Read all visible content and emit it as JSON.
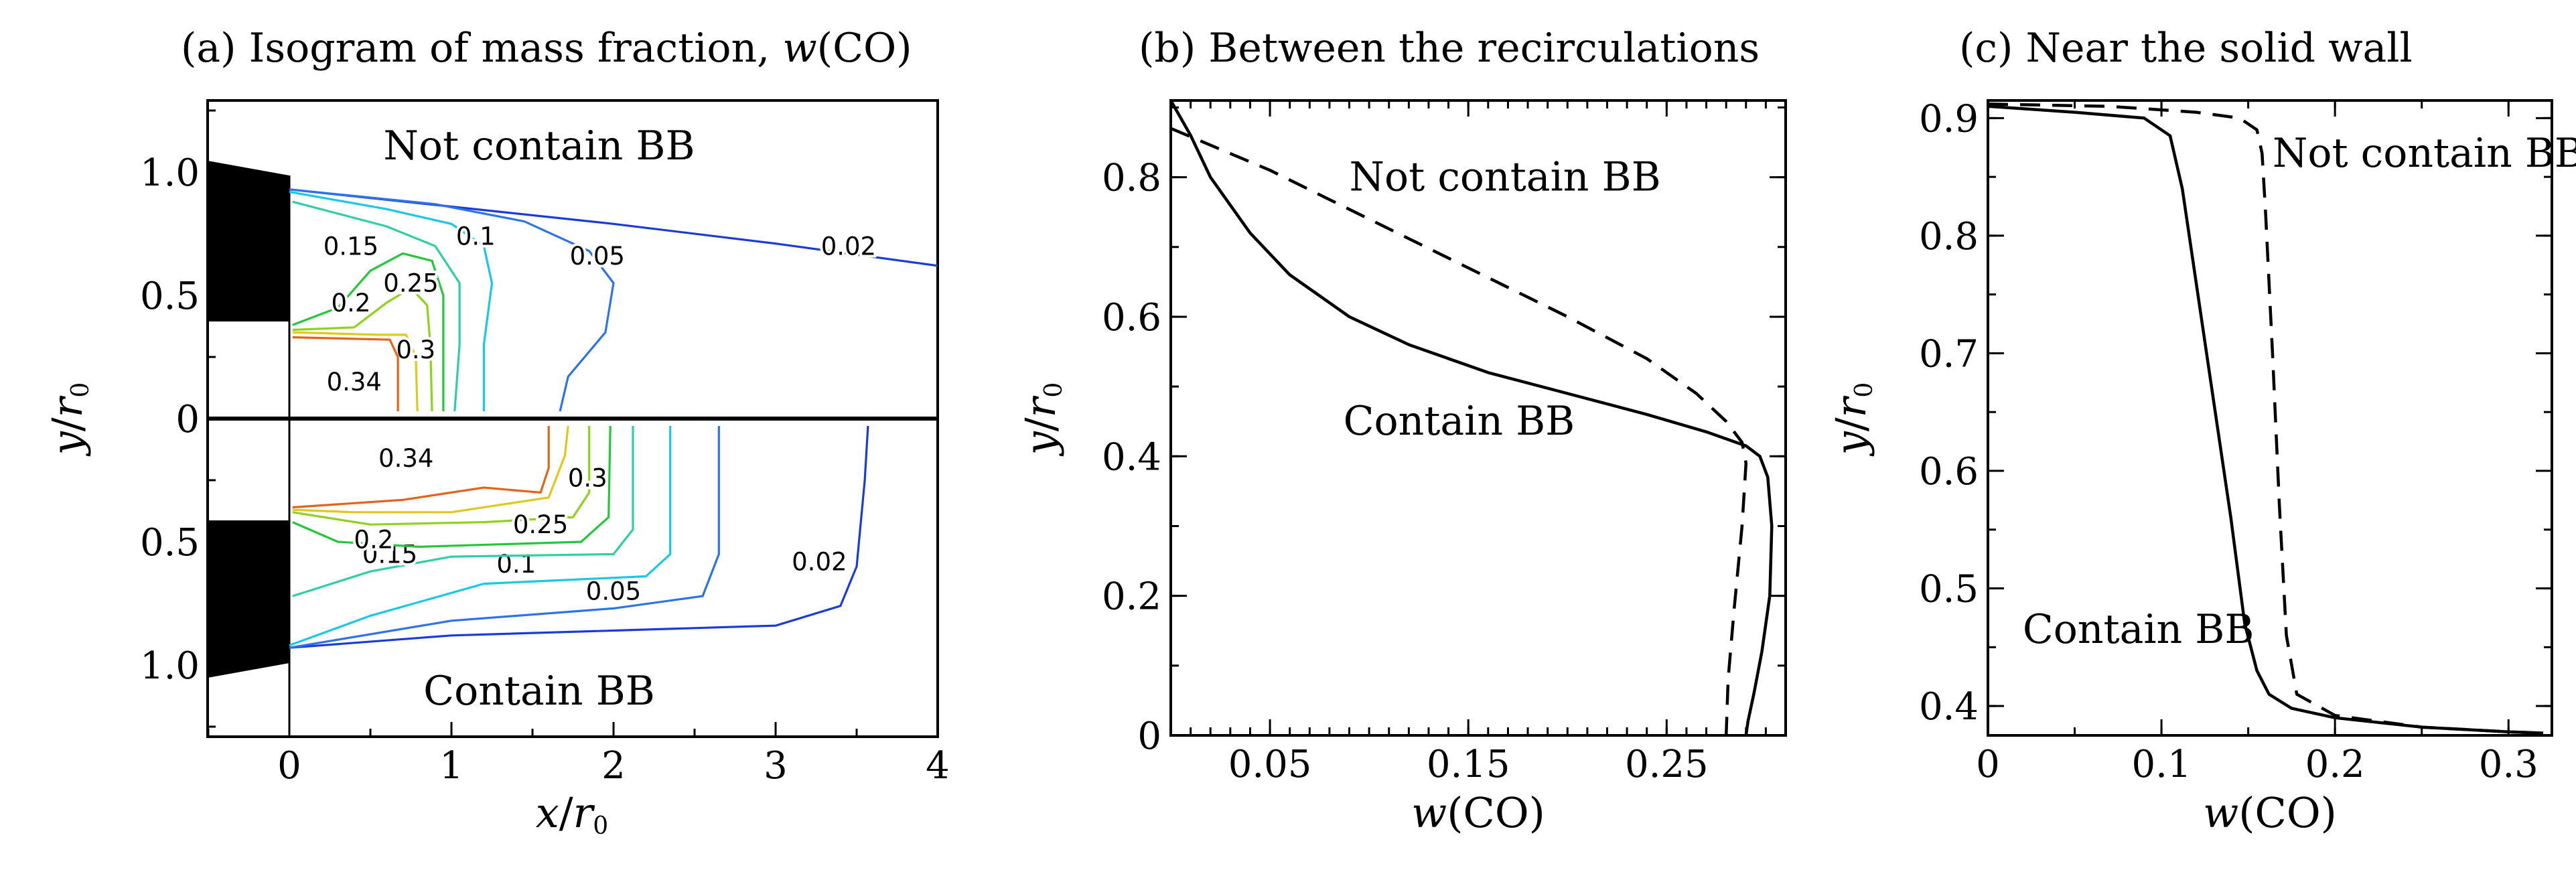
{
  "chart_data": [
    {
      "panel": "a",
      "type": "contour",
      "title": "(a) Isogram of mass fraction, w(CO)",
      "title_parts": {
        "prefix": "(a) Isogram of mass fraction, ",
        "var": "w",
        "suffix": "(CO)"
      },
      "xlabel": "x/r0",
      "xlabel_parts": {
        "num": "x",
        "den": "r",
        "sub": "0"
      },
      "ylabel": "y/r0",
      "ylabel_parts": {
        "num": "y",
        "den": "r",
        "sub": "0"
      },
      "xlim": [
        -0.5,
        4
      ],
      "x_ticks": [
        "0",
        "1",
        "2",
        "3",
        "4"
      ],
      "top_y_ticks": [
        "1.0",
        "0.5",
        "0"
      ],
      "bottom_y_ticks": [
        "0.5",
        "1.0"
      ],
      "top_label": "Not contain BB",
      "bottom_label": "Contain BB",
      "top_levels": [
        {
          "value": "0.02",
          "color": "#1a3cd6",
          "points": [
            [
              0,
              0.93
            ],
            [
              1,
              0.86
            ],
            [
              2,
              0.79
            ],
            [
              3,
              0.71
            ],
            [
              4,
              0.62
            ]
          ],
          "label": {
            "x": 3.45,
            "y": 0.7
          }
        },
        {
          "value": "0.05",
          "color": "#2c72e8",
          "points": [
            [
              0,
              0.93
            ],
            [
              0.9,
              0.87
            ],
            [
              1.45,
              0.8
            ],
            [
              1.85,
              0.68
            ],
            [
              2.0,
              0.55
            ],
            [
              1.95,
              0.35
            ],
            [
              1.72,
              0.17
            ],
            [
              1.67,
              0.03
            ]
          ],
          "label": {
            "x": 1.9,
            "y": 0.66
          }
        },
        {
          "value": "0.1",
          "color": "#19c8e6",
          "points": [
            [
              0,
              0.92
            ],
            [
              0.6,
              0.85
            ],
            [
              1.0,
              0.79
            ],
            [
              1.2,
              0.7
            ],
            [
              1.25,
              0.55
            ],
            [
              1.2,
              0.3
            ],
            [
              1.2,
              0.03
            ]
          ],
          "label": {
            "x": 1.15,
            "y": 0.74
          }
        },
        {
          "value": "0.15",
          "color": "#2ecfa0",
          "points": [
            [
              0.02,
              0.88
            ],
            [
              0.6,
              0.78
            ],
            [
              0.9,
              0.7
            ],
            [
              1.05,
              0.55
            ],
            [
              1.05,
              0.3
            ],
            [
              1.02,
              0.03
            ]
          ],
          "label": {
            "x": 0.38,
            "y": 0.7
          }
        },
        {
          "value": "0.2",
          "color": "#22c83a",
          "points": [
            [
              0.02,
              0.38
            ],
            [
              0.3,
              0.45
            ],
            [
              0.5,
              0.6
            ],
            [
              0.7,
              0.67
            ],
            [
              0.88,
              0.64
            ],
            [
              0.95,
              0.5
            ],
            [
              0.95,
              0.03
            ]
          ],
          "label": {
            "x": 0.38,
            "y": 0.47
          }
        },
        {
          "value": "0.25",
          "color": "#8fd21e",
          "points": [
            [
              0.02,
              0.36
            ],
            [
              0.4,
              0.37
            ],
            [
              0.6,
              0.47
            ],
            [
              0.75,
              0.53
            ],
            [
              0.85,
              0.46
            ],
            [
              0.87,
              0.3
            ],
            [
              0.88,
              0.03
            ]
          ],
          "label": {
            "x": 0.75,
            "y": 0.55
          }
        },
        {
          "value": "0.3",
          "color": "#e0c81a",
          "points": [
            [
              0.02,
              0.35
            ],
            [
              0.55,
              0.34
            ],
            [
              0.72,
              0.34
            ],
            [
              0.78,
              0.25
            ],
            [
              0.79,
              0.03
            ]
          ],
          "label": {
            "x": 0.78,
            "y": 0.28
          }
        },
        {
          "value": "0.34",
          "color": "#e0641a",
          "points": [
            [
              0.02,
              0.33
            ],
            [
              0.62,
              0.32
            ],
            [
              0.67,
              0.25
            ],
            [
              0.67,
              0.03
            ]
          ],
          "label": {
            "x": 0.4,
            "y": 0.15
          }
        }
      ],
      "bottom_levels": [
        {
          "value": "0.02",
          "color": "#1a3cd6",
          "points": [
            [
              0,
              0.93
            ],
            [
              1,
              0.88
            ],
            [
              2,
              0.86
            ],
            [
              3,
              0.84
            ],
            [
              3.4,
              0.76
            ],
            [
              3.5,
              0.6
            ],
            [
              3.55,
              0.25
            ],
            [
              3.57,
              0.03
            ]
          ],
          "label": {
            "x": 3.27,
            "y": 0.58
          }
        },
        {
          "value": "0.05",
          "color": "#2c72e8",
          "points": [
            [
              0,
              0.93
            ],
            [
              1,
              0.82
            ],
            [
              2,
              0.77
            ],
            [
              2.55,
              0.72
            ],
            [
              2.65,
              0.55
            ],
            [
              2.65,
              0.3
            ],
            [
              2.65,
              0.03
            ]
          ],
          "label": {
            "x": 2.0,
            "y": 0.7
          }
        },
        {
          "value": "0.1",
          "color": "#19c8e6",
          "points": [
            [
              0,
              0.92
            ],
            [
              0.5,
              0.8
            ],
            [
              1.2,
              0.67
            ],
            [
              2.2,
              0.64
            ],
            [
              2.35,
              0.55
            ],
            [
              2.35,
              0.03
            ]
          ],
          "label": {
            "x": 1.4,
            "y": 0.59
          }
        },
        {
          "value": "0.15",
          "color": "#2ecfa0",
          "points": [
            [
              0.02,
              0.72
            ],
            [
              0.5,
              0.62
            ],
            [
              1.0,
              0.56
            ],
            [
              2.0,
              0.55
            ],
            [
              2.12,
              0.45
            ],
            [
              2.12,
              0.03
            ]
          ],
          "label": {
            "x": 0.62,
            "y": 0.55
          }
        },
        {
          "value": "0.2",
          "color": "#22c83a",
          "points": [
            [
              0.02,
              0.42
            ],
            [
              0.3,
              0.5
            ],
            [
              0.8,
              0.52
            ],
            [
              1.8,
              0.5
            ],
            [
              1.97,
              0.4
            ],
            [
              1.98,
              0.03
            ]
          ],
          "label": {
            "x": 0.52,
            "y": 0.49
          }
        },
        {
          "value": "0.25",
          "color": "#8fd21e",
          "points": [
            [
              0.02,
              0.38
            ],
            [
              0.5,
              0.43
            ],
            [
              1.2,
              0.42
            ],
            [
              1.75,
              0.4
            ],
            [
              1.85,
              0.3
            ],
            [
              1.85,
              0.03
            ]
          ],
          "label": {
            "x": 1.55,
            "y": 0.43
          }
        },
        {
          "value": "0.3",
          "color": "#e0c81a",
          "points": [
            [
              0.02,
              0.37
            ],
            [
              0.4,
              0.38
            ],
            [
              1.0,
              0.38
            ],
            [
              1.6,
              0.32
            ],
            [
              1.7,
              0.15
            ],
            [
              1.72,
              0.03
            ]
          ],
          "label": {
            "x": 1.84,
            "y": 0.24
          }
        },
        {
          "value": "0.34",
          "color": "#e0641a",
          "points": [
            [
              0.02,
              0.36
            ],
            [
              0.7,
              0.33
            ],
            [
              1.2,
              0.28
            ],
            [
              1.55,
              0.3
            ],
            [
              1.6,
              0.2
            ],
            [
              1.6,
              0.03
            ]
          ],
          "label": {
            "x": 0.72,
            "y": 0.16
          }
        }
      ]
    },
    {
      "panel": "b",
      "type": "line",
      "title": "(b) Between the recirculations",
      "xlabel": "w(CO)",
      "xlabel_parts": {
        "var": "w",
        "suffix": "(CO)"
      },
      "ylabel": "y/r0",
      "ylabel_parts": {
        "num": "y",
        "den": "r",
        "sub": "0"
      },
      "xlim": [
        0,
        0.31
      ],
      "ylim": [
        0,
        0.91
      ],
      "x_ticks": [
        {
          "value": 0.05,
          "label": "0.05"
        },
        {
          "value": 0.15,
          "label": "0.15"
        },
        {
          "value": 0.25,
          "label": "0.25"
        }
      ],
      "y_ticks": [
        {
          "value": 0,
          "label": "0"
        },
        {
          "value": 0.2,
          "label": "0.2"
        },
        {
          "value": 0.4,
          "label": "0.4"
        },
        {
          "value": 0.6,
          "label": "0.6"
        },
        {
          "value": 0.8,
          "label": "0.8"
        }
      ],
      "annotations": [
        {
          "text": "Not contain BB",
          "x": 0.09,
          "y": 0.8
        },
        {
          "text": "Contain BB",
          "x": 0.087,
          "y": 0.45
        }
      ],
      "series": [
        {
          "name": "Contain BB",
          "style": "solid",
          "x": [
            0.0,
            0.01,
            0.02,
            0.04,
            0.06,
            0.09,
            0.12,
            0.16,
            0.2,
            0.24,
            0.27,
            0.29,
            0.297,
            0.301,
            0.303,
            0.302,
            0.298,
            0.294,
            0.291,
            0.29
          ],
          "y": [
            0.91,
            0.86,
            0.8,
            0.72,
            0.66,
            0.6,
            0.56,
            0.52,
            0.49,
            0.46,
            0.435,
            0.415,
            0.4,
            0.37,
            0.3,
            0.2,
            0.12,
            0.06,
            0.02,
            0.0
          ]
        },
        {
          "name": "Not contain BB",
          "style": "dashed",
          "x": [
            0.0,
            0.05,
            0.1,
            0.15,
            0.2,
            0.24,
            0.265,
            0.28,
            0.288,
            0.29,
            0.288,
            0.284,
            0.281,
            0.28
          ],
          "y": [
            0.87,
            0.81,
            0.74,
            0.67,
            0.6,
            0.54,
            0.49,
            0.45,
            0.42,
            0.39,
            0.3,
            0.18,
            0.08,
            0.0
          ]
        }
      ]
    },
    {
      "panel": "c",
      "type": "line",
      "title": "(c) Near the solid wall",
      "xlabel": "w(CO)",
      "xlabel_parts": {
        "var": "w",
        "suffix": "(CO)"
      },
      "ylabel": "y/r0",
      "ylabel_parts": {
        "num": "y",
        "den": "r",
        "sub": "0"
      },
      "xlim": [
        0,
        0.325
      ],
      "ylim": [
        0.375,
        0.915
      ],
      "x_ticks": [
        {
          "value": 0,
          "label": "0"
        },
        {
          "value": 0.1,
          "label": "0.1"
        },
        {
          "value": 0.2,
          "label": "0.2"
        },
        {
          "value": 0.3,
          "label": "0.3"
        }
      ],
      "y_ticks": [
        {
          "value": 0.4,
          "label": "0.4"
        },
        {
          "value": 0.5,
          "label": "0.5"
        },
        {
          "value": 0.6,
          "label": "0.6"
        },
        {
          "value": 0.7,
          "label": "0.7"
        },
        {
          "value": 0.8,
          "label": "0.8"
        },
        {
          "value": 0.9,
          "label": "0.9"
        }
      ],
      "annotations": [
        {
          "text": "Not contain BB",
          "x": 0.164,
          "y": 0.87
        },
        {
          "text": "Contain BB",
          "x": 0.02,
          "y": 0.465
        }
      ],
      "series": [
        {
          "name": "Contain BB",
          "style": "solid",
          "x": [
            0.0,
            0.05,
            0.09,
            0.105,
            0.112,
            0.12,
            0.13,
            0.14,
            0.148,
            0.155,
            0.162,
            0.175,
            0.2,
            0.25,
            0.3,
            0.32
          ],
          "y": [
            0.91,
            0.905,
            0.9,
            0.885,
            0.84,
            0.76,
            0.66,
            0.56,
            0.47,
            0.43,
            0.41,
            0.398,
            0.39,
            0.382,
            0.378,
            0.377
          ]
        },
        {
          "name": "Not contain BB",
          "style": "dashed",
          "x": [
            0.0,
            0.07,
            0.12,
            0.145,
            0.155,
            0.158,
            0.16,
            0.164,
            0.168,
            0.172,
            0.178,
            0.2,
            0.25,
            0.3,
            0.32
          ],
          "y": [
            0.912,
            0.91,
            0.905,
            0.9,
            0.89,
            0.87,
            0.82,
            0.7,
            0.57,
            0.46,
            0.41,
            0.392,
            0.382,
            0.378,
            0.377
          ]
        }
      ]
    }
  ]
}
